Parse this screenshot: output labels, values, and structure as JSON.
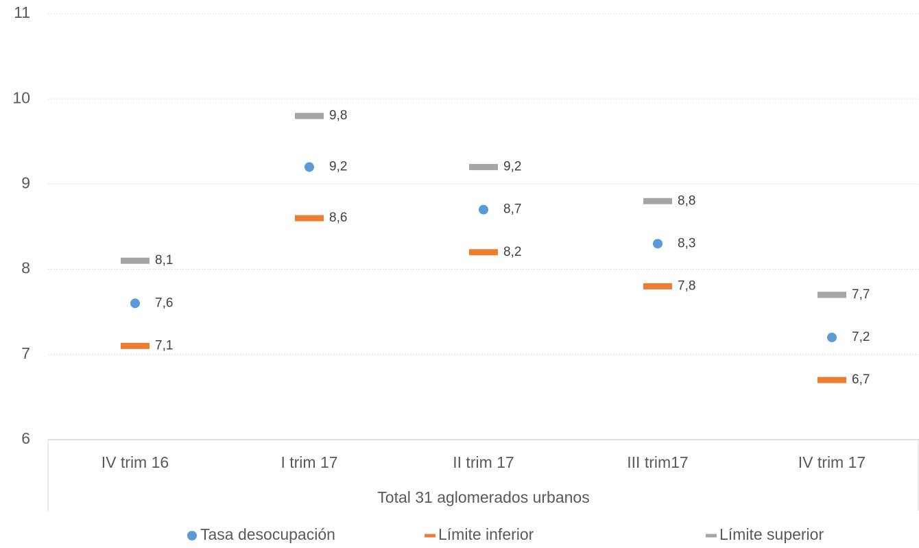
{
  "chart_data": {
    "type": "scatter",
    "categories": [
      "IV trim 16",
      "I trim 17",
      "II trim 17",
      "III trim17",
      "IV trim 17"
    ],
    "x_axis_label": "Total 31 aglomerados urbanos",
    "series": [
      {
        "name": "Tasa desocupación",
        "color": "#5b9bd5",
        "marker": "circle",
        "values": [
          7.6,
          9.2,
          8.7,
          8.3,
          7.2
        ],
        "value_labels": [
          "7,6",
          "9,2",
          "8,7",
          "8,3",
          "7,2"
        ]
      },
      {
        "name": "Límite inferior",
        "color": "#ed7d31",
        "marker": "dash",
        "values": [
          7.1,
          8.6,
          8.2,
          7.8,
          6.7
        ],
        "value_labels": [
          "7,1",
          "8,6",
          "8,2",
          "7,8",
          "6,7"
        ]
      },
      {
        "name": "Límite superior",
        "color": "#a5a5a5",
        "marker": "dash",
        "values": [
          8.1,
          9.8,
          9.2,
          8.8,
          7.7
        ],
        "value_labels": [
          "8,1",
          "9,8",
          "9,2",
          "8,8",
          "7,7"
        ]
      }
    ],
    "ylim": [
      6,
      11
    ],
    "yticks": [
      6,
      7,
      8,
      9,
      10,
      11
    ],
    "grid": true,
    "legend": "bottom"
  }
}
